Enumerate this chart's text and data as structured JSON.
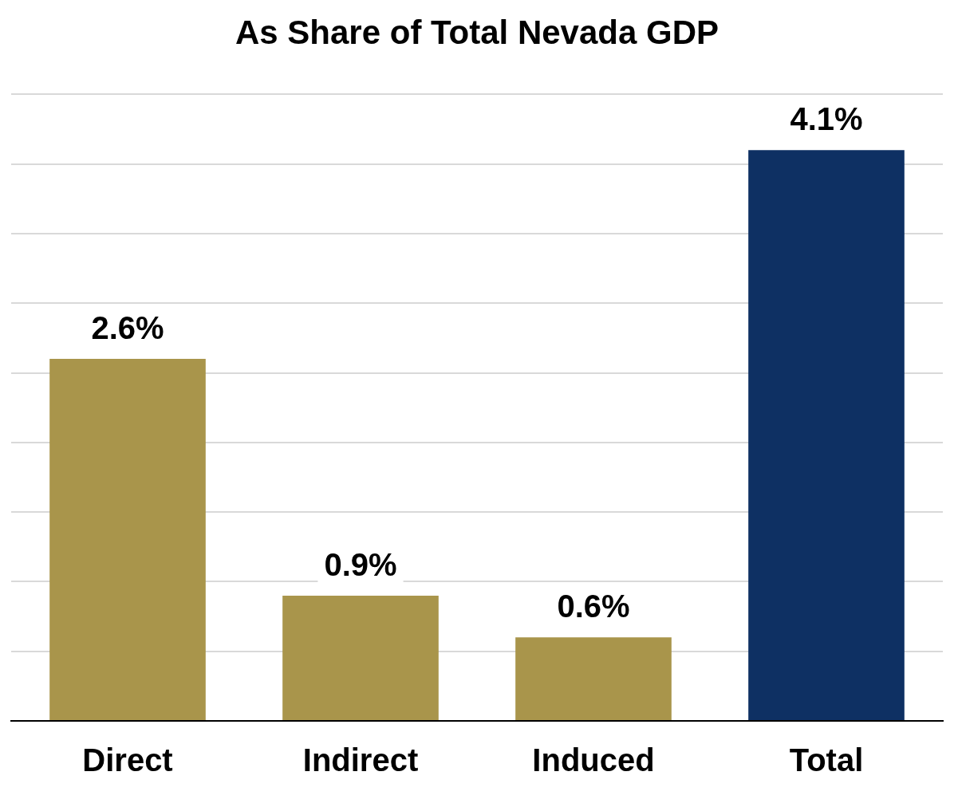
{
  "chart_data": {
    "type": "bar",
    "title": "As Share of Total Nevada GDP",
    "categories": [
      "Direct",
      "Indirect",
      "Induced",
      "Total"
    ],
    "values": [
      2.6,
      0.9,
      0.6,
      4.1
    ],
    "colors": [
      "#a9954b",
      "#a9954b",
      "#a9954b",
      "#0e3063"
    ],
    "value_labels": [
      "2.6%",
      "0.9%",
      "0.6%",
      "4.1%"
    ],
    "ylim": [
      0,
      4.5
    ],
    "yticks": [
      {
        "value": 0,
        "label": null
      },
      {
        "value": 0.5,
        "label": null
      },
      {
        "value": 1,
        "label": null
      },
      {
        "value": 1.5,
        "label": null
      },
      {
        "value": 2,
        "label": null
      },
      {
        "value": 2.5,
        "label": null
      },
      {
        "value": 3,
        "label": null
      },
      {
        "value": 3.5,
        "label": null
      },
      {
        "value": 4,
        "label": null
      },
      {
        "value": 4.5,
        "label": null
      }
    ],
    "grid": "y",
    "tick_labels": "x",
    "legend": false
  }
}
